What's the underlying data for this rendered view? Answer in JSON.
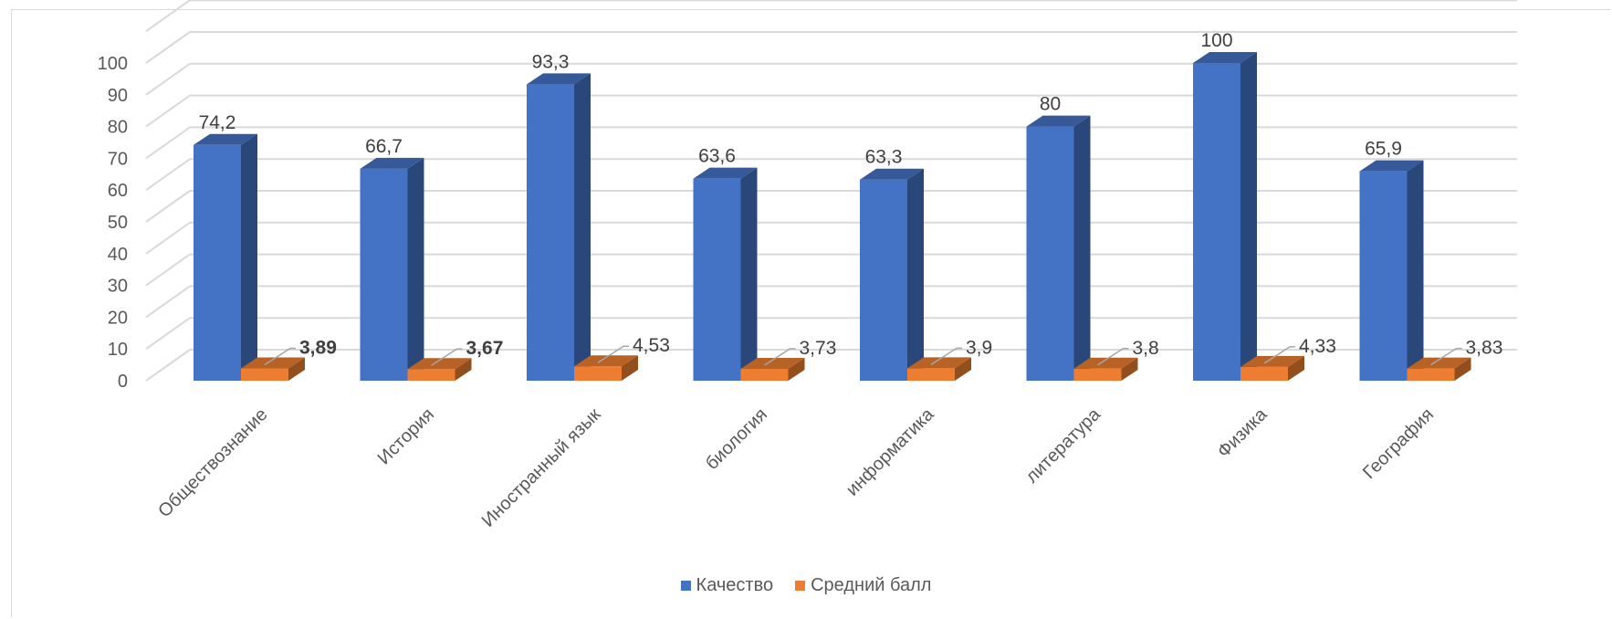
{
  "chart_data": {
    "type": "bar",
    "categories": [
      "Обществознание",
      "История",
      "Иностранный язык",
      "биология",
      "информатика",
      "литература",
      "Физика",
      "География"
    ],
    "series": [
      {
        "name": "Качество",
        "values": [
          74.2,
          66.7,
          93.3,
          63.6,
          63.3,
          80,
          100,
          65.9
        ],
        "labels": [
          "74,2",
          "66,7",
          "93,3",
          "63,6",
          "63,3",
          "80",
          "100",
          "65,9"
        ]
      },
      {
        "name": "Средний балл",
        "values": [
          3.89,
          3.67,
          4.53,
          3.73,
          3.9,
          3.8,
          4.33,
          3.83
        ],
        "labels": [
          "3,89",
          "3,67",
          "4,53",
          "3,73",
          "3,9",
          "3,8",
          "4,33",
          "3,83"
        ],
        "bold_labels": [
          true,
          true,
          false,
          false,
          false,
          false,
          false,
          false
        ]
      }
    ],
    "yticks": [
      "0",
      "10",
      "20",
      "30",
      "40",
      "50",
      "60",
      "70",
      "80",
      "90",
      "100"
    ],
    "ylim": [
      0,
      100
    ],
    "grid": true,
    "legend": "bottom",
    "colors": {
      "Качество": "#4472c4",
      "Средний балл": "#ed7d31"
    }
  }
}
